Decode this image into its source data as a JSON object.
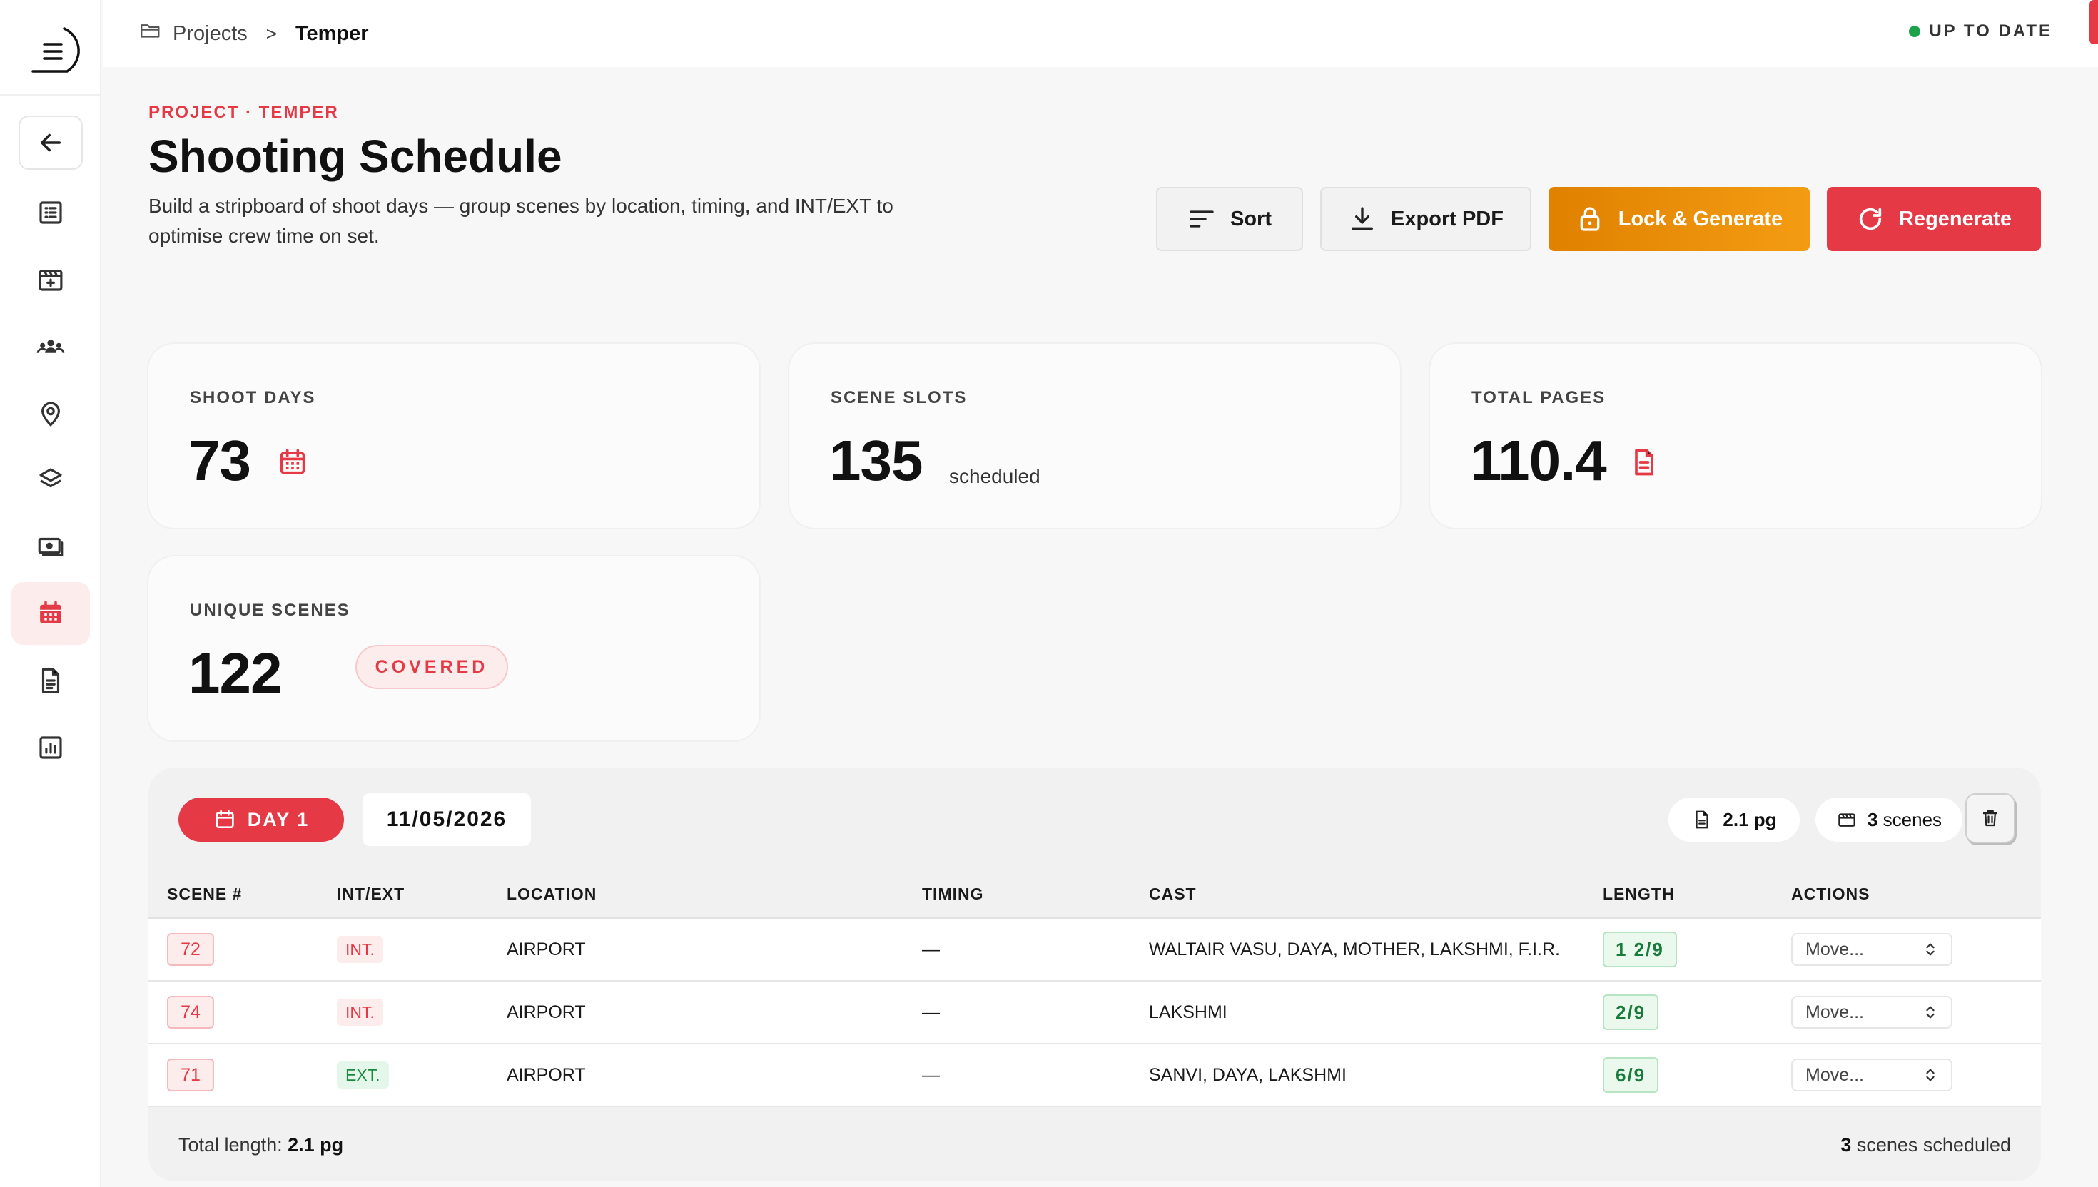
{
  "breadcrumb": {
    "root": "Projects",
    "separator": ">",
    "current": "Temper"
  },
  "status": {
    "label": "UP TO DATE",
    "color": "#1aa34a"
  },
  "header": {
    "eyebrow": "PROJECT · TEMPER",
    "title": "Shooting Schedule",
    "subtitle": "Build a stripboard of shoot days — group scenes by location, timing, and INT/EXT to optimise crew time on set."
  },
  "actions": {
    "sort": "Sort",
    "export": "Export PDF",
    "lock": "Lock & Generate",
    "regenerate": "Regenerate"
  },
  "stats": {
    "shoot_days": {
      "label": "SHOOT DAYS",
      "value": "73"
    },
    "scene_slots": {
      "label": "SCENE SLOTS",
      "value": "135",
      "suffix": "scheduled"
    },
    "total_pages": {
      "label": "TOTAL PAGES",
      "value": "110.4"
    },
    "unique_scenes": {
      "label": "UNIQUE SCENES",
      "value": "122",
      "badge": "COVERED"
    }
  },
  "day": {
    "badge": "DAY 1",
    "date": "11/05/2026",
    "pages_chip": "2.1 pg",
    "scenes_count": "3",
    "scenes_label": "scenes",
    "columns": [
      "SCENE #",
      "INT/EXT",
      "LOCATION",
      "TIMING",
      "CAST",
      "LENGTH",
      "ACTIONS"
    ],
    "rows": [
      {
        "scene": "72",
        "ie": "INT.",
        "location": "AIRPORT",
        "timing": "—",
        "cast": "WALTAIR VASU, DAYA, MOTHER, LAKSHMI, F.I.R.",
        "length": "1 2/9",
        "action": "Move..."
      },
      {
        "scene": "74",
        "ie": "INT.",
        "location": "AIRPORT",
        "timing": "—",
        "cast": "LAKSHMI",
        "length": "2/9",
        "action": "Move..."
      },
      {
        "scene": "71",
        "ie": "EXT.",
        "location": "AIRPORT",
        "timing": "—",
        "cast": "SANVI, DAYA, LAKSHMI",
        "length": "6/9",
        "action": "Move..."
      }
    ],
    "footer": {
      "total_label": "Total length:",
      "total_value": "2.1 pg",
      "scheduled_count": "3",
      "scheduled_label": "scenes scheduled"
    }
  },
  "colors": {
    "accent": "#e53946",
    "orange": "#f39c12",
    "success": "#1aa34a"
  },
  "sidebar": {
    "items": [
      "back-arrow-icon",
      "script-list-icon",
      "clapperboard-icon",
      "team-icon",
      "location-pin-icon",
      "layers-icon",
      "budget-icon",
      "calendar-icon",
      "document-icon",
      "report-chart-icon"
    ],
    "active": "calendar-icon"
  }
}
